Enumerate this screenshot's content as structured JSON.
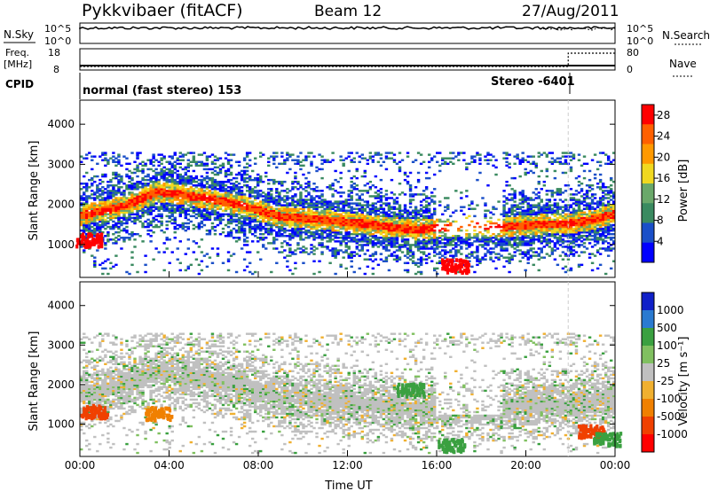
{
  "header": {
    "station": "Pykkvibaer (fitACF)",
    "beam": "Beam 12",
    "date": "27/Aug/2011"
  },
  "status_panel": {
    "left_labels": [
      "N.Sky",
      "Freq.",
      "[MHz]",
      "CPID"
    ],
    "right_labels": [
      "N.Search",
      "Nave"
    ],
    "nsky_ticks": [
      "10^5",
      "10^0"
    ],
    "nsearch_ticks": [
      "10^5",
      "10^0"
    ],
    "freq_ticks": [
      "18",
      "8"
    ],
    "nave_ticks": [
      "80",
      "0"
    ],
    "cpid_segments": [
      {
        "label": "normal (fast stereo) 153",
        "start_hour": 0,
        "end_hour": 21.9
      },
      {
        "label": "Stereo -6401",
        "start_hour": 21.9,
        "end_hour": 24
      }
    ]
  },
  "colors": {
    "power": [
      "#0000ff",
      "#1a4fc8",
      "#3a8a60",
      "#6aa86a",
      "#f0d820",
      "#ff9900",
      "#ff6000",
      "#ff0000"
    ],
    "velocity": [
      "#1020c8",
      "#2a7ad0",
      "#3aa040",
      "#80c060",
      "#c0c0c0",
      "#f0b030",
      "#f08000",
      "#f04000",
      "#ff0000"
    ]
  },
  "chart_data": [
    {
      "type": "heatmap",
      "name": "power",
      "xlabel": "Time UT",
      "ylabel": "Slant Range [km]",
      "xlim": [
        0,
        24
      ],
      "ylim": [
        180,
        4600
      ],
      "x_ticks": [
        "00:00",
        "04:00",
        "08:00",
        "12:00",
        "16:00",
        "20:00",
        "00:00"
      ],
      "y_ticks": [
        1000,
        2000,
        3000,
        4000
      ],
      "colorbar": {
        "label": "Power [dB]",
        "ticks": [
          4,
          8,
          12,
          16,
          20,
          24,
          28
        ],
        "range": [
          0,
          30
        ]
      },
      "main_echo_band": {
        "hours": [
          0,
          2,
          3.5,
          5.5,
          7,
          9,
          11,
          13,
          15,
          17,
          19,
          21,
          22,
          23,
          24
        ],
        "range_km": [
          1700,
          1950,
          2300,
          2150,
          2000,
          1680,
          1600,
          1480,
          1350,
          1450,
          1420,
          1500,
          1500,
          1600,
          1750
        ]
      },
      "hotspots": [
        {
          "hour": 0.4,
          "range_km": 1150,
          "power_db": 28
        },
        {
          "hour": 16.8,
          "range_km": 500,
          "power_db": 28
        }
      ]
    },
    {
      "type": "heatmap",
      "name": "velocity",
      "xlabel": "Time UT",
      "ylabel": "Slant Range [km]",
      "xlim": [
        0,
        24
      ],
      "ylim": [
        180,
        4600
      ],
      "x_ticks": [
        "00:00",
        "04:00",
        "08:00",
        "12:00",
        "16:00",
        "20:00",
        "00:00"
      ],
      "y_ticks": [
        1000,
        2000,
        3000,
        4000
      ],
      "colorbar": {
        "label": "Velocity [m s⁻¹]",
        "ticks": [
          "1000",
          "500",
          "100",
          "25",
          "-25",
          "-100",
          "-500",
          "-1000"
        ]
      },
      "features": [
        {
          "hour": 0.6,
          "range_km": 1350,
          "velocity": -500
        },
        {
          "hour": 3.5,
          "range_km": 1300,
          "velocity": -300
        },
        {
          "hour": 14.8,
          "range_km": 1900,
          "velocity": 300
        },
        {
          "hour": 16.6,
          "range_km": 500,
          "velocity": 150
        },
        {
          "hour": 22.9,
          "range_km": 850,
          "velocity": -500
        },
        {
          "hour": 23.6,
          "range_km": 650,
          "velocity": 150
        }
      ]
    }
  ]
}
